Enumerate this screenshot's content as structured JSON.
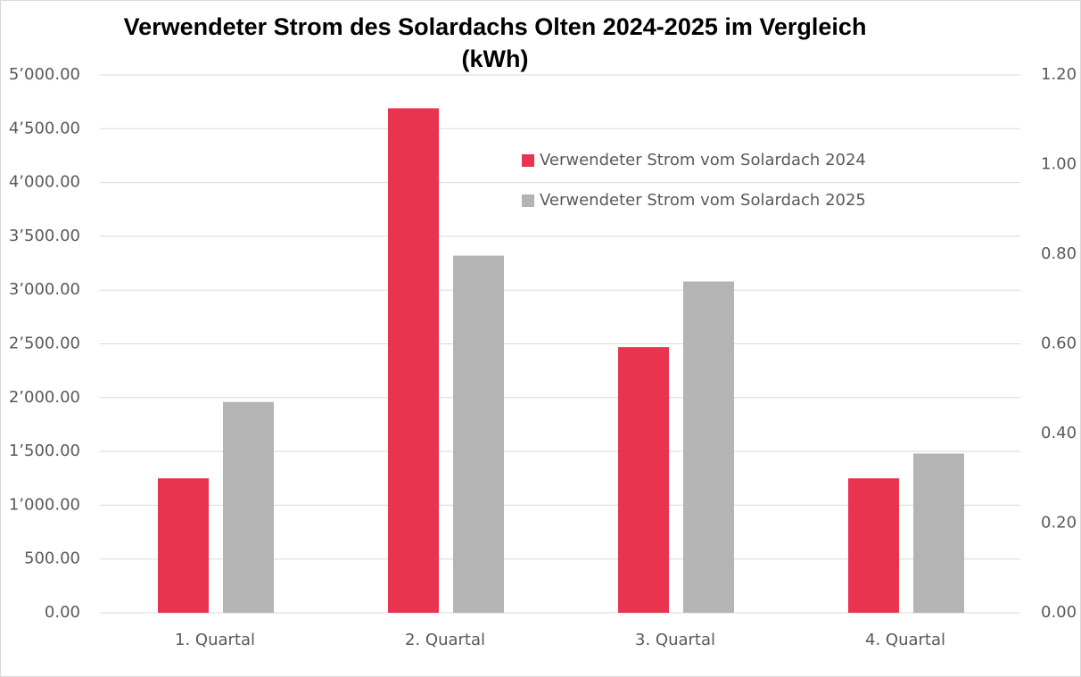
{
  "chart_data": {
    "type": "bar",
    "title": "Verwendeter Strom des Solardachs Olten 2024-2025 im Vergleich (kWh)",
    "categories": [
      "1. Quartal",
      "2. Quartal",
      "3. Quartal",
      "4. Quartal"
    ],
    "series": [
      {
        "name": "Verwendeter Strom vom Solardach 2024",
        "color": "#e8344e",
        "values": [
          1250,
          4690,
          2470,
          1250
        ]
      },
      {
        "name": "Verwendeter Strom vom Solardach 2025",
        "color": "#b4b4b4",
        "values": [
          1960,
          3320,
          3080,
          1480
        ]
      }
    ],
    "ylim": [
      0,
      5000
    ],
    "yticks": [
      {
        "value": 0,
        "label": "0.00"
      },
      {
        "value": 500,
        "label": "500.00"
      },
      {
        "value": 1000,
        "label": "1’000.00"
      },
      {
        "value": 1500,
        "label": "1’500.00"
      },
      {
        "value": 2000,
        "label": "2’000.00"
      },
      {
        "value": 2500,
        "label": "2’500.00"
      },
      {
        "value": 3000,
        "label": "3’000.00"
      },
      {
        "value": 3500,
        "label": "3’500.00"
      },
      {
        "value": 4000,
        "label": "4’000.00"
      },
      {
        "value": 4500,
        "label": "4’500.00"
      },
      {
        "value": 5000,
        "label": "5’000.00"
      }
    ],
    "y2lim": [
      0,
      1.2
    ],
    "y2ticks": [
      {
        "value": 0,
        "label": "0.00"
      },
      {
        "value": 0.2,
        "label": "0.20"
      },
      {
        "value": 0.4,
        "label": "0.40"
      },
      {
        "value": 0.6,
        "label": "0.60"
      },
      {
        "value": 0.8,
        "label": "0.80"
      },
      {
        "value": 1.0,
        "label": "1.00"
      },
      {
        "value": 1.2,
        "label": "1.20"
      }
    ],
    "grid": true,
    "legend": "upper right"
  }
}
